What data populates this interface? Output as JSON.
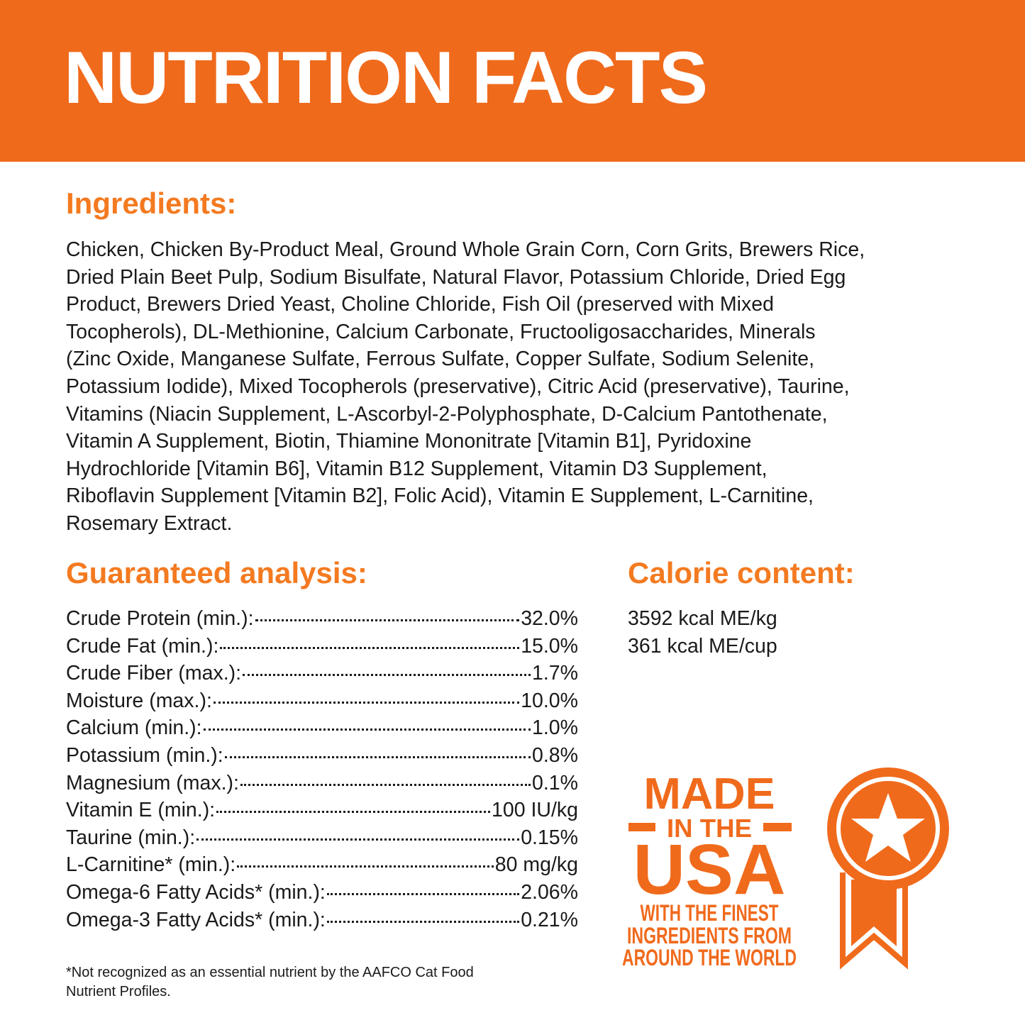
{
  "header": {
    "title": "NUTRITION FACTS"
  },
  "ingredients": {
    "heading": "Ingredients:",
    "lines": [
      "Chicken, Chicken By-Product Meal, Ground Whole Grain Corn, Corn Grits, Brewers Rice,",
      "Dried Plain Beet Pulp, Sodium Bisulfate, Natural Flavor, Potassium Chloride, Dried Egg",
      "Product, Brewers Dried Yeast, Choline Chloride, Fish Oil (preserved with Mixed",
      "Tocopherols), DL-Methionine, Calcium Carbonate, Fructooligosaccharides, Minerals",
      "(Zinc Oxide, Manganese Sulfate, Ferrous Sulfate, Copper Sulfate, Sodium Selenite,",
      "Potassium Iodide), Mixed Tocopherols (preservative), Citric Acid (preservative), Taurine,",
      "Vitamins (Niacin Supplement, L-Ascorbyl-2-Polyphosphate, D-Calcium Pantothenate,",
      "Vitamin A Supplement, Biotin, Thiamine Mononitrate [Vitamin B1], Pyridoxine",
      "Hydrochloride [Vitamin B6], Vitamin B12 Supplement, Vitamin D3 Supplement,",
      "Riboflavin Supplement [Vitamin B2], Folic Acid), Vitamin E Supplement, L-Carnitine,",
      "Rosemary Extract."
    ]
  },
  "analysis": {
    "heading": "Guaranteed analysis:",
    "rows": [
      [
        "Crude Protein (min.):",
        "32.0%"
      ],
      [
        "Crude Fat (min.):",
        "15.0%"
      ],
      [
        "Crude Fiber (max.):",
        "1.7%"
      ],
      [
        "Moisture (max.):",
        "10.0%"
      ],
      [
        "Calcium (min.):",
        "1.0%"
      ],
      [
        "Potassium (min.):",
        "0.8%"
      ],
      [
        "Magnesium (max.):",
        "0.1%"
      ],
      [
        "Vitamin E (min.):",
        "100 IU/kg"
      ],
      [
        "Taurine (min.):",
        "0.15%"
      ],
      [
        "L-Carnitine* (min.):",
        "80 mg/kg"
      ],
      [
        "Omega-6 Fatty Acids* (min.):",
        "2.06%"
      ],
      [
        "Omega-3 Fatty Acids* (min.):",
        "0.21%"
      ]
    ],
    "footnote": [
      "*Not recognized as an essential nutrient by the AAFCO Cat Food",
      "Nutrient Profiles."
    ]
  },
  "calorie": {
    "heading": "Calorie content:",
    "lines": [
      "3592 kcal ME/kg",
      "361 kcal ME/cup"
    ]
  },
  "badge": {
    "line1": "MADE",
    "line2": "IN THE",
    "line3": "USA",
    "tagline": [
      "WITH THE FINEST",
      "INGREDIENTS FROM",
      "AROUND THE WORLD"
    ]
  }
}
